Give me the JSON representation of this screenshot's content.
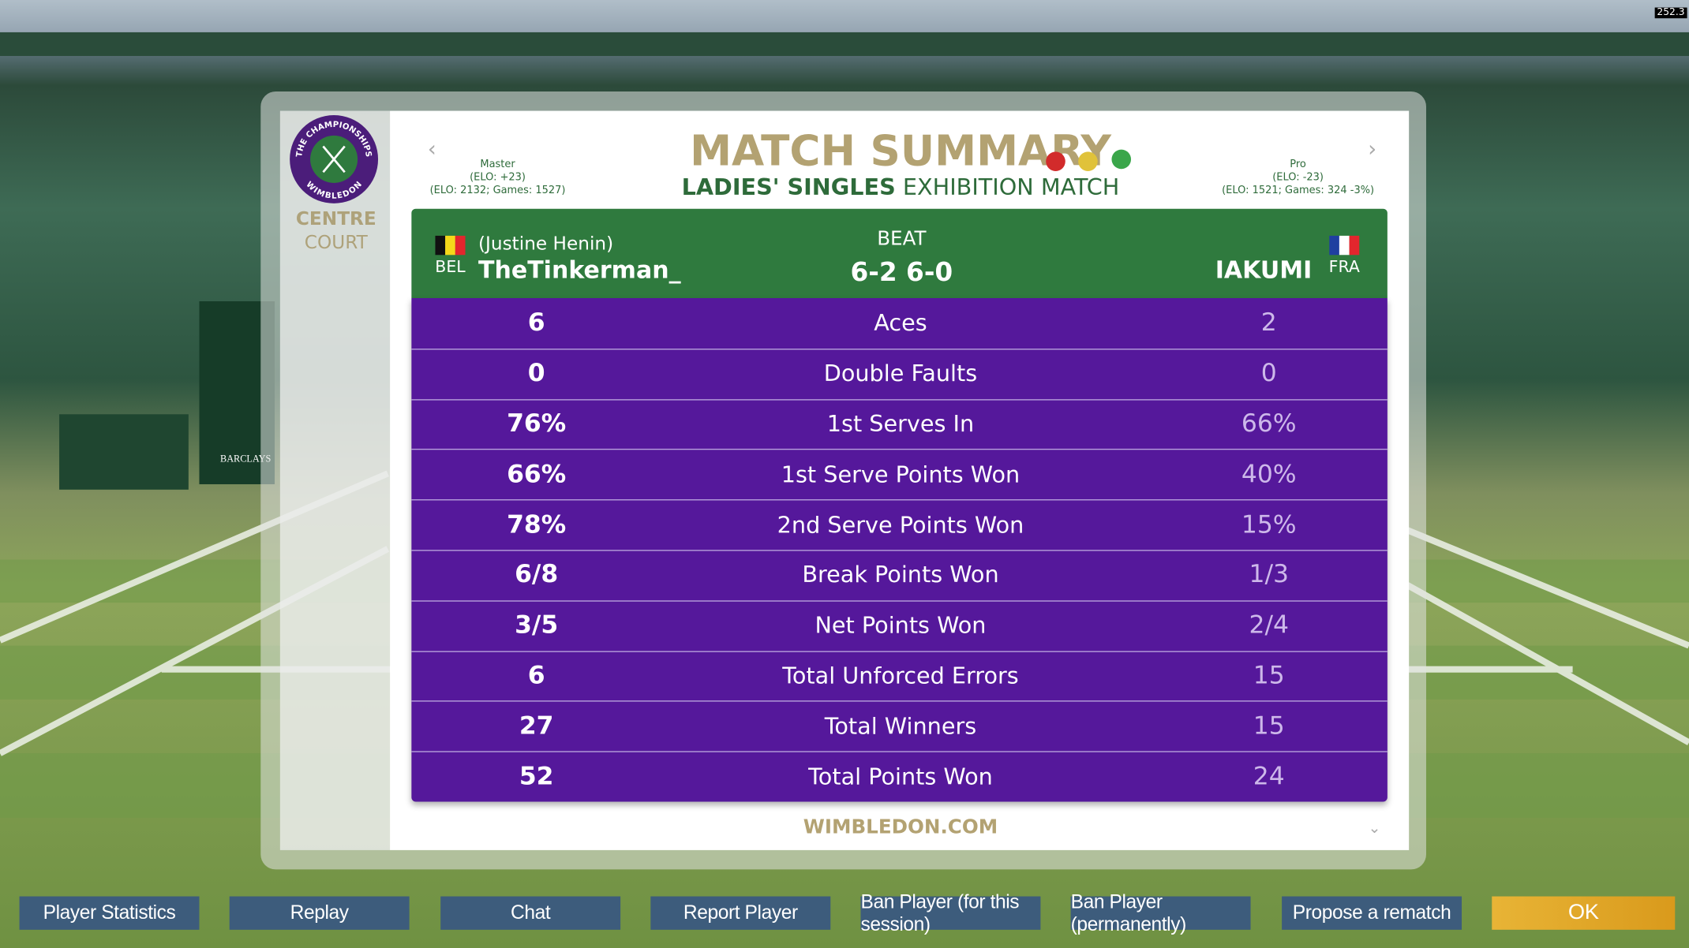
{
  "corner_label": "252.3",
  "scene": {
    "sponsor": "BARCLAYS"
  },
  "sidebar": {
    "logo_top": "THE CHAMPIONSHIPS",
    "logo_bottom": "WIMBLEDON",
    "court_line1": "CENTRE",
    "court_line2": "COURT"
  },
  "header": {
    "title": "MATCH SUMMARY",
    "subtitle_bold": "LADIES' SINGLES",
    "subtitle_rest": "EXHIBITION MATCH",
    "left_info": [
      "Master",
      "(ELO: +23)",
      "(ELO: 2132; Games: 1527)"
    ],
    "right_info": [
      "Pro",
      "(ELO: -23)",
      "(ELO: 1521; Games: 324 -3%)"
    ]
  },
  "result": {
    "winner_country": "BEL",
    "winner_character": "(Justine Henin)",
    "winner_name": "TheTinkerman_",
    "verdict": "BEAT",
    "score": "6-2 6-0",
    "loser_name": "IAKUMI",
    "loser_country": "FRA"
  },
  "stats": {
    "rows": [
      {
        "left": "6",
        "label": "Aces",
        "right": "2"
      },
      {
        "left": "0",
        "label": "Double Faults",
        "right": "0"
      },
      {
        "left": "76%",
        "label": "1st Serves In",
        "right": "66%"
      },
      {
        "left": "66%",
        "label": "1st Serve Points Won",
        "right": "40%"
      },
      {
        "left": "78%",
        "label": "2nd Serve Points Won",
        "right": "15%"
      },
      {
        "left": "6/8",
        "label": "Break Points Won",
        "right": "1/3"
      },
      {
        "left": "3/5",
        "label": "Net Points Won",
        "right": "2/4"
      },
      {
        "left": "6",
        "label": "Total Unforced Errors",
        "right": "15"
      },
      {
        "left": "27",
        "label": "Total Winners",
        "right": "15"
      },
      {
        "left": "52",
        "label": "Total Points Won",
        "right": "24"
      }
    ]
  },
  "footer": {
    "link": "WIMBLEDON.COM"
  },
  "buttons": [
    "Player Statistics",
    "Replay",
    "Chat",
    "Report Player",
    "Ban Player (for this session)",
    "Ban Player (permanently)",
    "Propose a rematch",
    "OK"
  ]
}
